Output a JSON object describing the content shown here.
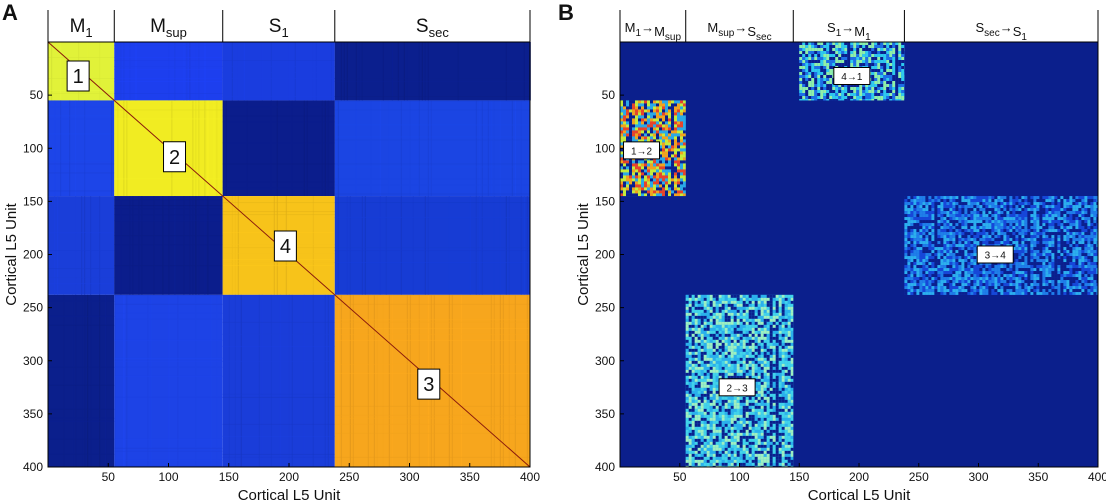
{
  "panel_a_letter": "A",
  "panel_b_letter": "B",
  "chart_data": [
    {
      "type": "heatmap",
      "panel": "A",
      "xlabel": "Cortical L5 Unit",
      "ylabel": "Cortical L5 Unit",
      "xlim": [
        0,
        400
      ],
      "ylim": [
        0,
        400
      ],
      "x_ticks": [
        50,
        100,
        150,
        200,
        250,
        300,
        350,
        400
      ],
      "y_ticks": [
        50,
        100,
        150,
        200,
        250,
        300,
        350,
        400
      ],
      "y_axis_inverted": true,
      "region_boundaries": [
        0,
        55,
        145,
        238,
        400
      ],
      "regions": [
        {
          "name": "M",
          "sub": "1"
        },
        {
          "name": "M",
          "sub": "sup"
        },
        {
          "name": "S",
          "sub": "1"
        },
        {
          "name": "S",
          "sub": "sec"
        }
      ],
      "block_colors": [
        [
          "#e1f239",
          "#1d3fee",
          "#1a3ddf",
          "#0b1f8e"
        ],
        [
          "#1d45e8",
          "#f1ec22",
          "#0b1d8c",
          "#1b45e3"
        ],
        [
          "#1a3ed9",
          "#0b1d8c",
          "#f7c31a",
          "#173cd4"
        ],
        [
          "#0b1f8c",
          "#1d43e6",
          "#1a3dd9",
          "#f7a61d"
        ]
      ],
      "block_labels": [
        {
          "text": "1",
          "x": 25,
          "y": 32
        },
        {
          "text": "2",
          "x": 105,
          "y": 108
        },
        {
          "text": "4",
          "x": 197,
          "y": 192
        },
        {
          "text": "3",
          "x": 316,
          "y": 322
        }
      ],
      "diagonal": true
    },
    {
      "type": "heatmap",
      "panel": "B",
      "xlabel": "Cortical L5 Unit",
      "ylabel": "Cortical L5 Unit",
      "xlim": [
        0,
        400
      ],
      "ylim": [
        0,
        400
      ],
      "x_ticks": [
        50,
        100,
        150,
        200,
        250,
        300,
        350,
        400
      ],
      "y_ticks": [
        50,
        100,
        150,
        200,
        250,
        300,
        350,
        400
      ],
      "y_axis_inverted": true,
      "region_boundaries": [
        0,
        55,
        145,
        238,
        400
      ],
      "regions": [
        {
          "parts": [
            {
              "name": "M",
              "sub": "1"
            },
            {
              "name": "M",
              "sub": "sup"
            }
          ]
        },
        {
          "parts": [
            {
              "name": "M",
              "sub": "sup"
            },
            {
              "name": "S",
              "sub": "sec"
            }
          ]
        },
        {
          "parts": [
            {
              "name": "S",
              "sub": "1"
            },
            {
              "name": "M",
              "sub": "1"
            }
          ]
        },
        {
          "parts": [
            {
              "name": "S",
              "sub": "sec"
            },
            {
              "name": "S",
              "sub": "1"
            }
          ]
        }
      ],
      "arrow": "→",
      "background_color": "#0b1f8c",
      "blocks": [
        {
          "label": "4→1",
          "x0": 150,
          "x1": 238,
          "y0": 0,
          "y1": 55,
          "palette": [
            "#0b1f8c",
            "#1d6fe6",
            "#2ec9ee",
            "#8ff0a8"
          ],
          "label_x": 194,
          "label_y": 32
        },
        {
          "label": "1→2",
          "x0": 0,
          "x1": 55,
          "y0": 55,
          "y1": 145,
          "palette": [
            "#0b1f8c",
            "#2aa9e8",
            "#c6ec3a",
            "#f3a21d",
            "#e9432a"
          ],
          "label_x": 18,
          "label_y": 102
        },
        {
          "label": "3→4",
          "x0": 238,
          "x1": 400,
          "y0": 145,
          "y1": 238,
          "palette": [
            "#0b1f8c",
            "#1647d8",
            "#1f7fe9",
            "#2cb0ee"
          ],
          "label_x": 314,
          "label_y": 200
        },
        {
          "label": "2→3",
          "x0": 55,
          "x1": 145,
          "y0": 238,
          "y1": 400,
          "palette": [
            "#0b1f8c",
            "#2bb0ec",
            "#42d3ea",
            "#9ff0c0"
          ],
          "label_x": 98,
          "label_y": 325
        }
      ]
    }
  ]
}
